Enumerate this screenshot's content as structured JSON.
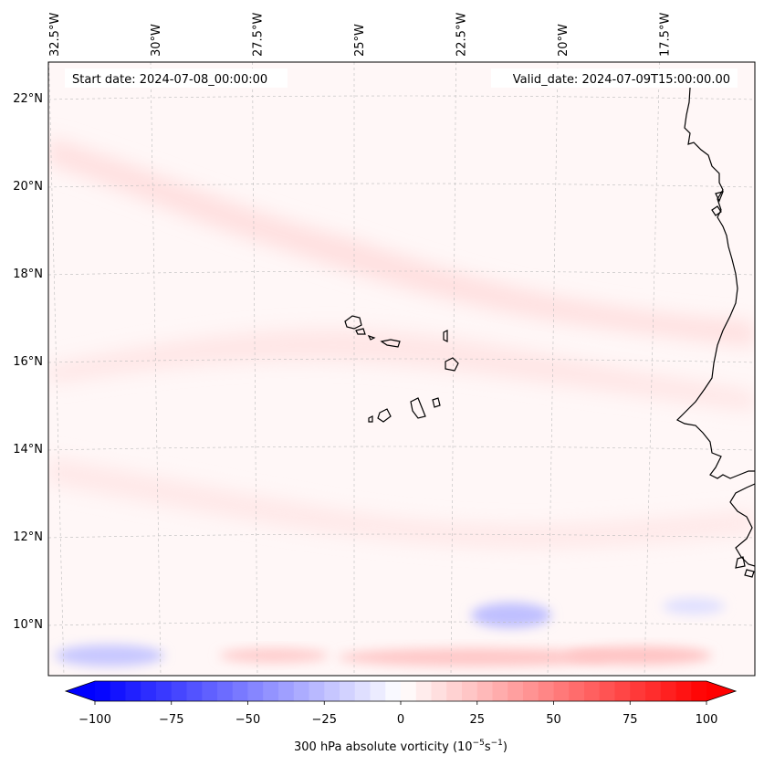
{
  "annotations": {
    "start_date": "Start date: 2024-07-08_00:00:00",
    "valid_date": "Valid_date: 2024-07-09T15:00:00.00"
  },
  "longitude_labels": [
    {
      "lon": -32.5,
      "label": "32.5°W"
    },
    {
      "lon": -30.0,
      "label": "30°W"
    },
    {
      "lon": -27.5,
      "label": "27.5°W"
    },
    {
      "lon": -25.0,
      "label": "25°W"
    },
    {
      "lon": -22.5,
      "label": "22.5°W"
    },
    {
      "lon": -20.0,
      "label": "20°W"
    },
    {
      "lon": -17.5,
      "label": "17.5°W"
    }
  ],
  "latitude_labels": [
    {
      "lat": 22,
      "label": "22°N"
    },
    {
      "lat": 20,
      "label": "20°N"
    },
    {
      "lat": 18,
      "label": "18°N"
    },
    {
      "lat": 16,
      "label": "16°N"
    },
    {
      "lat": 14,
      "label": "14°N"
    },
    {
      "lat": 12,
      "label": "12°N"
    },
    {
      "lat": 10,
      "label": "10°N"
    }
  ],
  "colorbar": {
    "min": -100,
    "max": 100,
    "ticks": [
      -100,
      -75,
      -50,
      -25,
      0,
      25,
      50,
      75,
      100
    ],
    "tick_labels": [
      "−100",
      "−75",
      "−50",
      "−25",
      "0",
      "25",
      "50",
      "75",
      "100"
    ],
    "label_prefix": "300 hPa absolute vorticity (10",
    "label_exp1": "−5",
    "label_mid": "s",
    "label_exp2": "−1",
    "label_suffix": ")",
    "colormap": "bwr",
    "low_color": "#0000ff",
    "mid_color": "#ffffff",
    "high_color": "#ff0000",
    "extend": "both"
  },
  "field": {
    "background_vorticity": 3,
    "features": [
      {
        "type": "band",
        "value": 12
      },
      {
        "type": "band",
        "value": 10
      },
      {
        "type": "band",
        "value": 9
      },
      {
        "type": "blob",
        "value": -22
      },
      {
        "type": "blob",
        "value": -25
      },
      {
        "type": "blob",
        "value": -12
      },
      {
        "type": "blob",
        "value": 22
      },
      {
        "type": "blob",
        "value": 24
      },
      {
        "type": "blob",
        "value": 20
      }
    ]
  }
}
